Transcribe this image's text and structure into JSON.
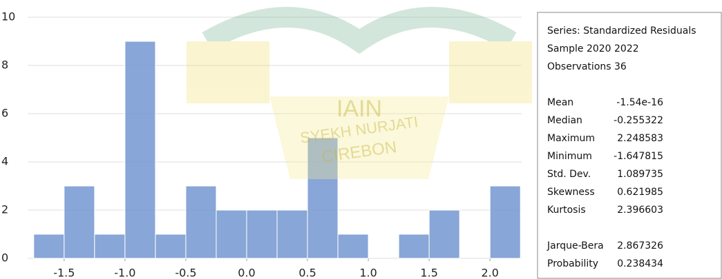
{
  "chart_data": {
    "type": "histogram",
    "bins": [
      -1.75,
      -1.5,
      -1.25,
      -1.0,
      -0.75,
      -0.5,
      -0.25,
      0.0,
      0.25,
      0.5,
      0.75,
      1.0,
      1.25,
      1.5,
      1.75,
      2.0,
      2.25
    ],
    "counts": [
      1,
      3,
      1,
      9,
      1,
      3,
      2,
      2,
      2,
      5,
      1,
      0,
      1,
      2,
      0,
      3
    ],
    "color": "#7396d0",
    "xlim": [
      -1.8,
      2.26
    ],
    "ylim": [
      0,
      10
    ],
    "xticks": [
      -1.5,
      {
        "value": -1.0,
        "label": "-1.0"
      },
      -0.5,
      {
        "value": 0,
        "label": "0.0"
      },
      0.5,
      {
        "value": 1.0,
        "label": "1.0"
      },
      1.5,
      {
        "value": 2.0,
        "label": "2.0"
      }
    ],
    "yticks": [
      0,
      2,
      4,
      6,
      8,
      10
    ],
    "grid": true
  },
  "stats": {
    "header": [
      "Series: Standardized Residuals",
      "Sample 2020 2022",
      "Observations 36"
    ],
    "rows": [
      [
        "Mean",
        "-1.54e-16"
      ],
      [
        "Median",
        "-0.255322"
      ],
      [
        "Maximum",
        "2.248583"
      ],
      [
        "Minimum",
        "-1.647815"
      ],
      [
        "Std. Dev.",
        "1.089735"
      ],
      [
        "Skewness",
        "0.621985"
      ],
      [
        "Kurtosis",
        "2.396603"
      ]
    ],
    "tests": [
      [
        "Jarque-Bera",
        "2.867326"
      ],
      [
        "Probability",
        "0.238434"
      ]
    ]
  },
  "watermark": [
    "IAIN",
    "SYEKH NURJATI",
    "CIREBON"
  ]
}
